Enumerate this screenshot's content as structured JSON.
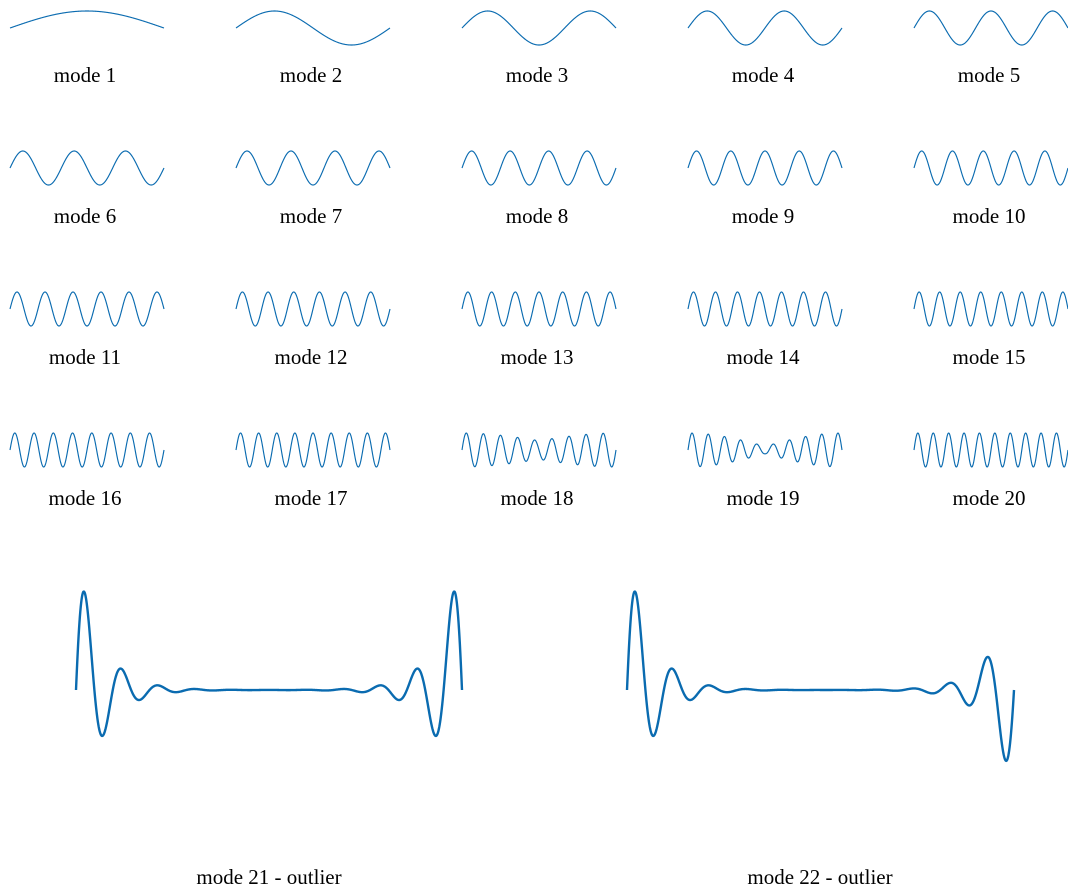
{
  "figure": {
    "curve_color": "#0a6bb0"
  },
  "chart_data": {
    "type": "line",
    "title": "",
    "xlabel": "",
    "ylabel": "",
    "grid": false,
    "axes_visible": false,
    "panels": [
      {
        "label": "mode 1",
        "mode": 1,
        "kind": "sine"
      },
      {
        "label": "mode 2",
        "mode": 2,
        "kind": "sine"
      },
      {
        "label": "mode 3",
        "mode": 3,
        "kind": "sine"
      },
      {
        "label": "mode 4",
        "mode": 4,
        "kind": "sine"
      },
      {
        "label": "mode 5",
        "mode": 5,
        "kind": "sine"
      },
      {
        "label": "mode 6",
        "mode": 6,
        "kind": "sine"
      },
      {
        "label": "mode 7",
        "mode": 7,
        "kind": "sine"
      },
      {
        "label": "mode 8",
        "mode": 8,
        "kind": "sine"
      },
      {
        "label": "mode 9",
        "mode": 9,
        "kind": "sine"
      },
      {
        "label": "mode 10",
        "mode": 10,
        "kind": "sine"
      },
      {
        "label": "mode 11",
        "mode": 11,
        "kind": "sine"
      },
      {
        "label": "mode 12",
        "mode": 12,
        "kind": "sine"
      },
      {
        "label": "mode 13",
        "mode": 13,
        "kind": "sine"
      },
      {
        "label": "mode 14",
        "mode": 14,
        "kind": "sine"
      },
      {
        "label": "mode 15",
        "mode": 15,
        "kind": "sine"
      },
      {
        "label": "mode 16",
        "mode": 16,
        "kind": "sine"
      },
      {
        "label": "mode 17",
        "mode": 17,
        "kind": "sine"
      },
      {
        "label": "mode 18",
        "mode": 18,
        "kind": "beat",
        "envelope_min": 0.55
      },
      {
        "label": "mode 19",
        "mode": 19,
        "kind": "beat",
        "envelope_min": 0.22
      },
      {
        "label": "mode 20",
        "mode": 20,
        "kind": "sine"
      },
      {
        "label": "mode 21 - outlier",
        "mode": 21,
        "kind": "edge_symmetric"
      },
      {
        "label": "mode 22 - outlier",
        "mode": 22,
        "kind": "edge_antisymmetric"
      }
    ]
  }
}
